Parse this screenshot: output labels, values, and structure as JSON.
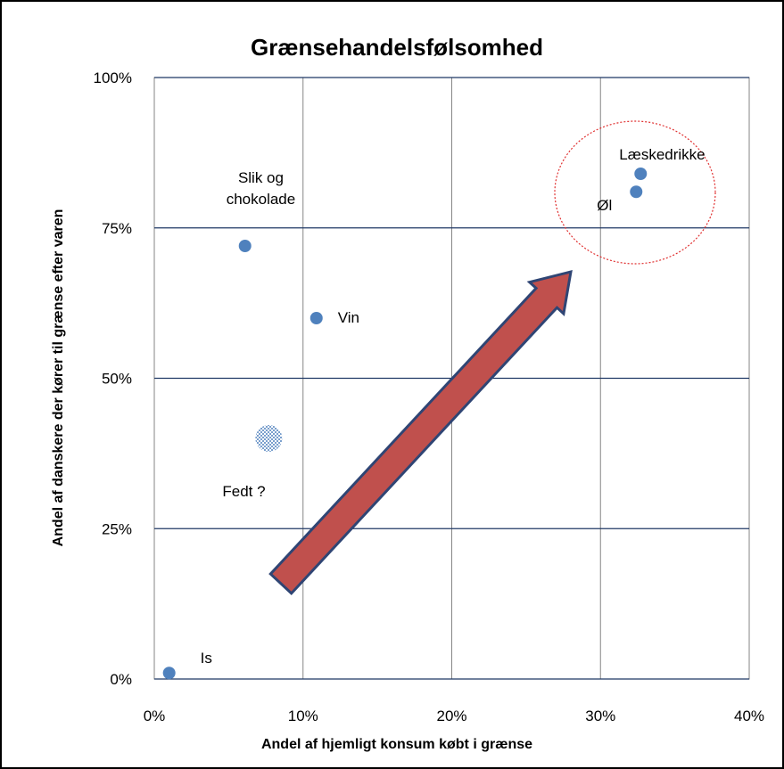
{
  "chart_data": {
    "type": "scatter",
    "title": "Grænsehandelsfølsomhed",
    "x_label": "Andel af hjemligt konsum købt i grænse",
    "y_label": "Andel af danskere der kører til grænse efter varen",
    "xlim": [
      0,
      40
    ],
    "ylim": [
      0,
      100
    ],
    "xticks": [
      {
        "value": 0,
        "label": "0%"
      },
      {
        "value": 10,
        "label": "10%"
      },
      {
        "value": 20,
        "label": "20%"
      },
      {
        "value": 30,
        "label": "30%"
      },
      {
        "value": 40,
        "label": "40%"
      }
    ],
    "yticks": [
      {
        "value": 0,
        "label": "0%"
      },
      {
        "value": 25,
        "label": "25%"
      },
      {
        "value": 50,
        "label": "50%"
      },
      {
        "value": 75,
        "label": "75%"
      },
      {
        "value": 100,
        "label": "100%"
      }
    ],
    "grid": true,
    "series": [
      {
        "color": "#4f81bd",
        "fill": "solid",
        "x": [
          1.0,
          6.1,
          10.9,
          32.7,
          32.4
        ],
        "values": [
          1,
          72,
          60,
          84,
          81
        ],
        "labels": [
          "Is",
          "Slik og\nchokolade",
          "Vin",
          "Læskedrikke",
          "Øl"
        ]
      },
      {
        "color": "#4f81bd",
        "fill": "dotted",
        "x": [
          7.7
        ],
        "values": [
          40
        ],
        "labels": [
          "Fedt ?"
        ]
      }
    ]
  }
}
